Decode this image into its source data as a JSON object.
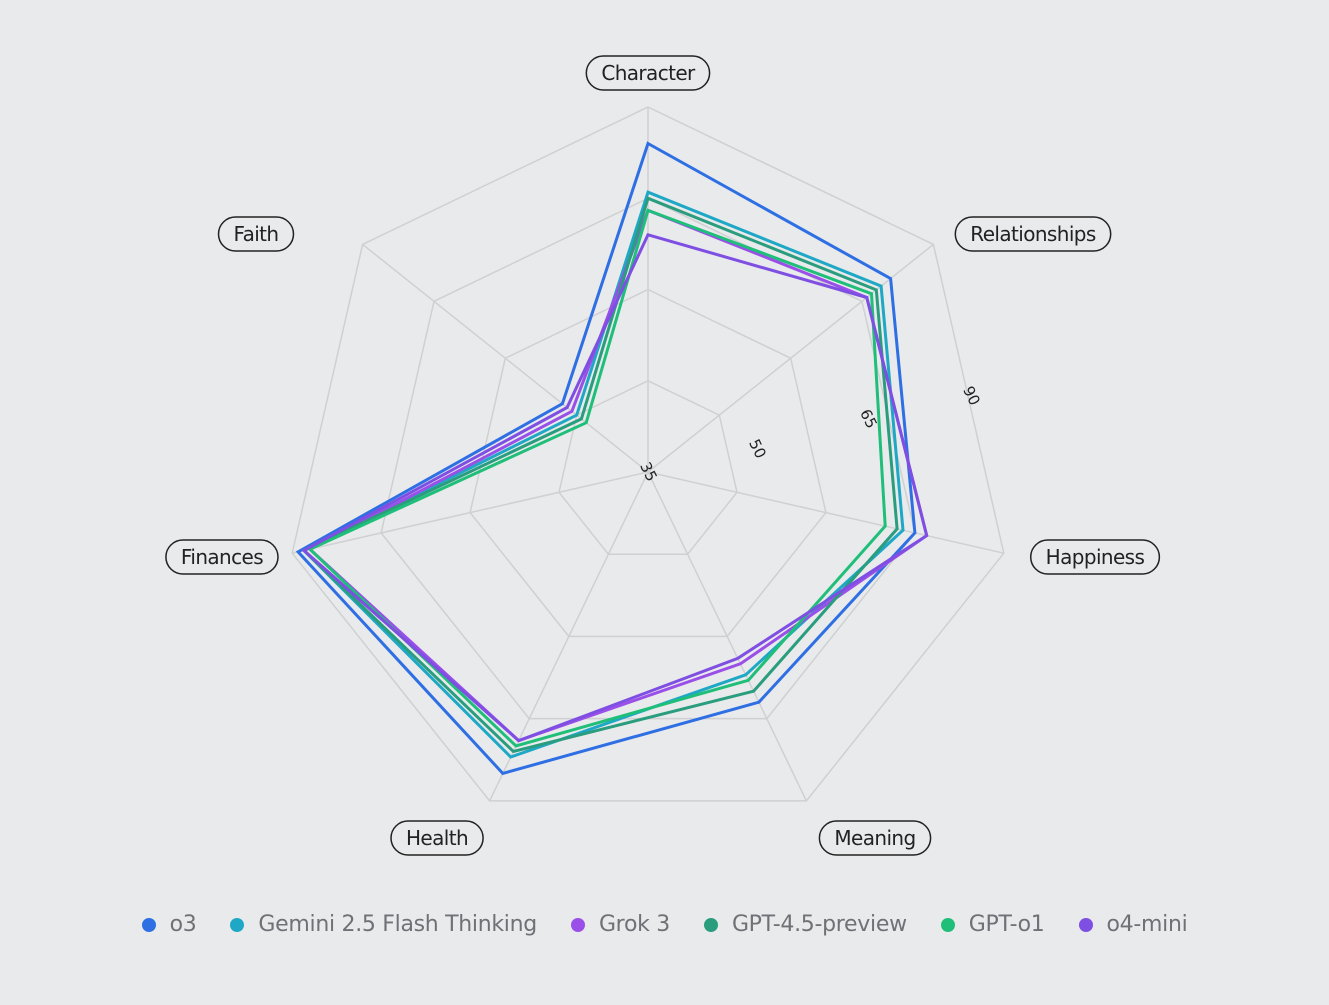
{
  "chart_data": {
    "type": "radar",
    "axes": [
      "Character",
      "Relationships",
      "Happiness",
      "Meaning",
      "Health",
      "Finances",
      "Faith"
    ],
    "ticks": [
      35,
      50,
      65,
      90
    ],
    "rmin": 35,
    "rmax": 95,
    "grid": true,
    "legend_position": "bottom",
    "series": [
      {
        "name": "o3",
        "color": "#2f6fe4",
        "values": [
          89,
          86,
          80,
          77,
          90,
          94,
          53
        ]
      },
      {
        "name": "Gemini 2.5 Flash Thinking",
        "color": "#1fa8c6",
        "values": [
          81,
          84,
          78,
          72,
          87,
          93,
          50
        ]
      },
      {
        "name": "Grok 3",
        "color": "#9a4fe8",
        "values": [
          78,
          81,
          82,
          70,
          84,
          92,
          51
        ]
      },
      {
        "name": "GPT-4.5-preview",
        "color": "#2a9d7f",
        "values": [
          80,
          83,
          77,
          75,
          86,
          93,
          49
        ]
      },
      {
        "name": "GPT-o1",
        "color": "#1fbf7a",
        "values": [
          78,
          82,
          75,
          73,
          85,
          92,
          48
        ]
      },
      {
        "name": "o4-mini",
        "color": "#7e4fe2",
        "values": [
          74,
          81,
          82,
          69,
          84,
          93,
          52
        ]
      }
    ]
  }
}
